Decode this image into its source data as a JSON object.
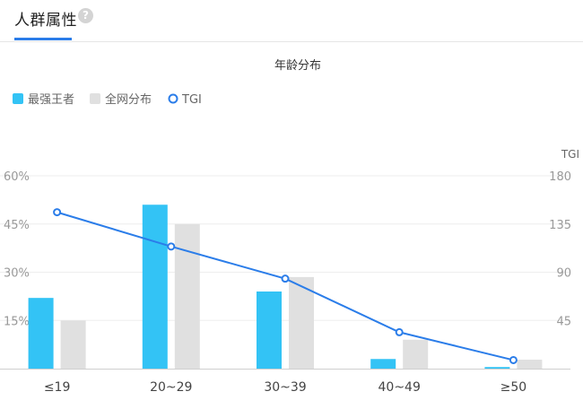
{
  "header": {
    "title": "人群属性",
    "help_icon_glyph": "?"
  },
  "chart_data": {
    "type": "bar",
    "title": "年龄分布",
    "categories": [
      "≤19",
      "20~29",
      "30~39",
      "40~49",
      "≥50"
    ],
    "series": [
      {
        "name": "最强王者",
        "type": "bar",
        "color": "#33c3f5",
        "values": [
          22,
          51,
          24,
          3,
          0.5
        ]
      },
      {
        "name": "全网分布",
        "type": "bar",
        "color": "#e0e0e0",
        "values": [
          15,
          45,
          28.5,
          9,
          2.8
        ]
      },
      {
        "name": "TGI",
        "type": "line",
        "axis": "right",
        "color": "#2b7de9",
        "values": [
          146,
          114,
          84,
          34,
          8
        ]
      }
    ],
    "left_axis": {
      "ticks": [
        "60%",
        "45%",
        "30%",
        "15%"
      ],
      "ylim": [
        0,
        60
      ]
    },
    "right_axis": {
      "name": "TGI",
      "ticks": [
        "180",
        "135",
        "90",
        "45"
      ],
      "ylim": [
        0,
        180
      ]
    },
    "legend_position": "top-left"
  }
}
